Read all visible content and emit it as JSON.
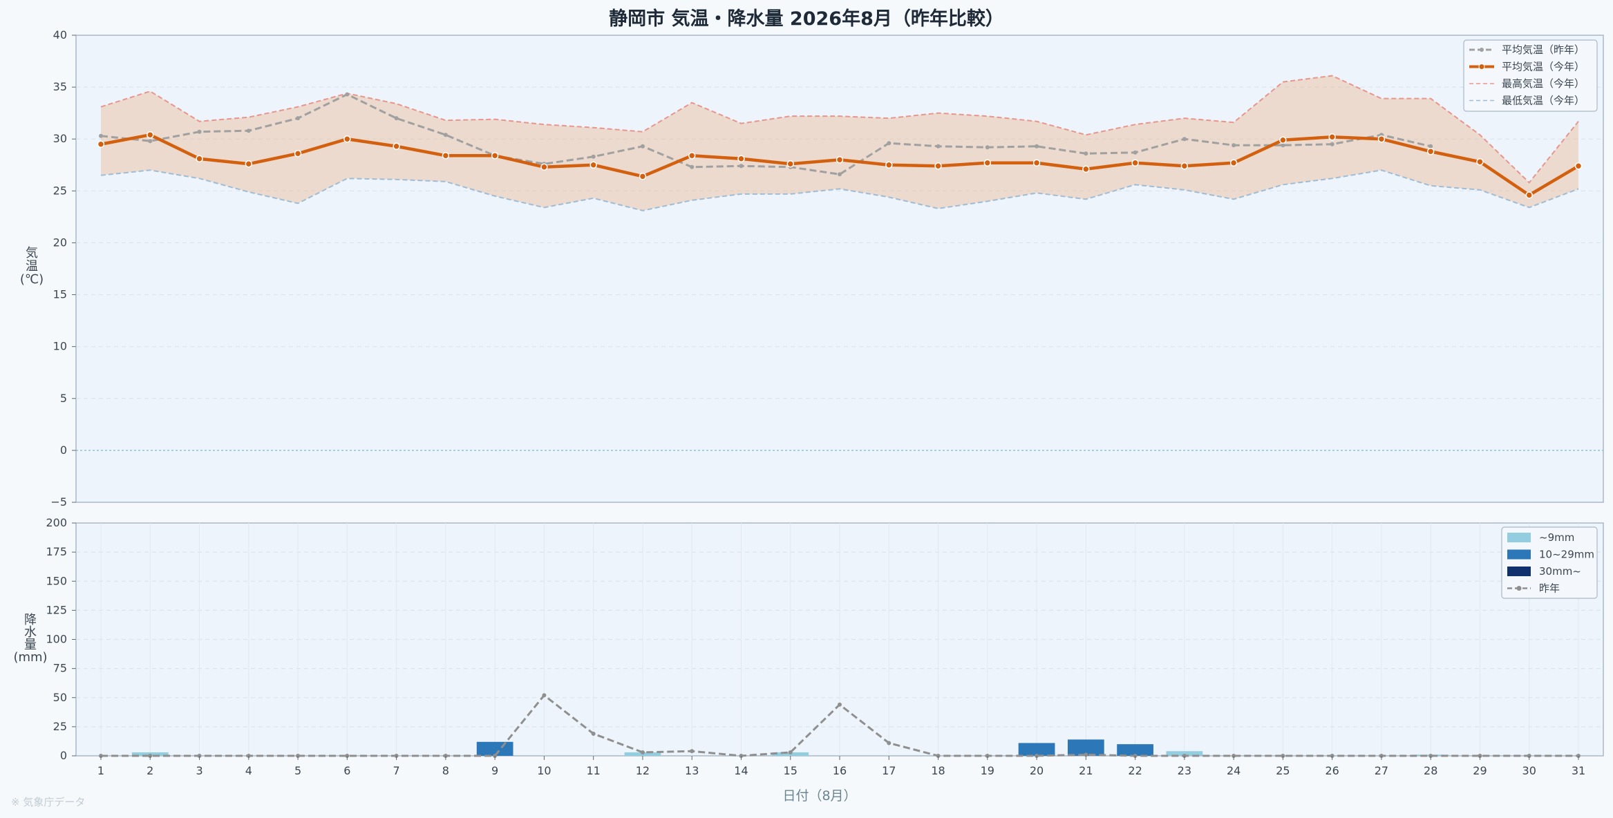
{
  "title": "静岡市 気温・降水量 2026年8月（昨年比較）",
  "source_note": "※ 気象庁データ",
  "chart_data": [
    {
      "type": "line",
      "ylabel": [
        "気",
        "温",
        "(℃)"
      ],
      "ylim": [
        -5,
        40
      ],
      "yticks": [
        "−5",
        "0",
        "5",
        "10",
        "15",
        "20",
        "25",
        "30",
        "35",
        "40"
      ],
      "ytick_values": [
        -5,
        0,
        5,
        10,
        15,
        20,
        25,
        30,
        35,
        40
      ],
      "grid": true,
      "legend_position": "top-right",
      "x": [
        1,
        2,
        3,
        4,
        5,
        6,
        7,
        8,
        9,
        10,
        11,
        12,
        13,
        14,
        15,
        16,
        17,
        18,
        19,
        20,
        21,
        22,
        23,
        24,
        25,
        26,
        27,
        28,
        29,
        30,
        31
      ],
      "series": [
        {
          "name": "平均気温（昨年）",
          "color": "#a0a0a0",
          "style": "dash-dot-marker",
          "values": [
            30.3,
            29.8,
            30.7,
            30.8,
            32.0,
            34.3,
            32.0,
            30.4,
            28.4,
            27.6,
            28.3,
            29.3,
            27.3,
            27.4,
            27.3,
            26.6,
            29.6,
            29.3,
            29.2,
            29.3,
            28.6,
            28.7,
            30.0,
            29.4,
            29.4,
            29.5,
            30.4,
            29.3,
            null,
            null,
            null
          ]
        },
        {
          "name": "平均気温（今年）",
          "color": "#d2600e",
          "style": "solid-marker",
          "values": [
            29.5,
            30.4,
            28.1,
            27.6,
            28.6,
            30.0,
            29.3,
            28.4,
            28.4,
            27.3,
            27.5,
            26.4,
            28.4,
            28.1,
            27.6,
            28.0,
            27.5,
            27.4,
            27.7,
            27.7,
            27.1,
            27.7,
            27.4,
            27.7,
            29.9,
            30.2,
            30.0,
            28.8,
            27.8,
            24.6,
            27.4
          ]
        },
        {
          "name": "最高気温（今年）",
          "color": "#e8958d",
          "style": "dashed",
          "values": [
            33.1,
            34.6,
            31.7,
            32.1,
            33.1,
            34.4,
            33.4,
            31.8,
            31.9,
            31.4,
            31.1,
            30.7,
            33.5,
            31.5,
            32.2,
            32.2,
            32.0,
            32.5,
            32.2,
            31.7,
            30.4,
            31.4,
            32.0,
            31.6,
            35.5,
            36.1,
            33.9,
            33.9,
            30.4,
            25.8,
            31.7
          ]
        },
        {
          "name": "最低気温（今年）",
          "color": "#9fbcd6",
          "style": "dashed",
          "values": [
            26.5,
            27.0,
            26.2,
            24.9,
            23.8,
            26.2,
            26.1,
            25.9,
            24.5,
            23.4,
            24.3,
            23.1,
            24.1,
            24.7,
            24.7,
            25.2,
            24.4,
            23.3,
            24.0,
            24.8,
            24.2,
            25.6,
            25.1,
            24.2,
            25.6,
            26.2,
            27.0,
            25.5,
            25.1,
            23.4,
            25.2
          ]
        }
      ]
    },
    {
      "type": "bar",
      "ylabel": [
        "降",
        "水",
        "量",
        "(mm)"
      ],
      "xlabel": "日付（8月）",
      "ylim": [
        0,
        200
      ],
      "yticks": [
        "0",
        "25",
        "50",
        "75",
        "100",
        "125",
        "150",
        "175",
        "200"
      ],
      "ytick_values": [
        0,
        25,
        50,
        75,
        100,
        125,
        150,
        175,
        200
      ],
      "categories": [
        "1",
        "2",
        "3",
        "4",
        "5",
        "6",
        "7",
        "8",
        "9",
        "10",
        "11",
        "12",
        "13",
        "14",
        "15",
        "16",
        "17",
        "18",
        "19",
        "20",
        "21",
        "22",
        "23",
        "24",
        "25",
        "26",
        "27",
        "28",
        "29",
        "30",
        "31"
      ],
      "grid": true,
      "legend_position": "top-right",
      "bin_legend": [
        {
          "name": "~9mm",
          "color": "#93cde0"
        },
        {
          "name": "10~29mm",
          "color": "#2b77b8"
        },
        {
          "name": "30mm~",
          "color": "#10306e"
        }
      ],
      "values": [
        0,
        3,
        0,
        0,
        0,
        0,
        0,
        0,
        12,
        0,
        0,
        3,
        0,
        0,
        3,
        0,
        0,
        0,
        0,
        11,
        14,
        10,
        4,
        0,
        0,
        0,
        0,
        1,
        0,
        0,
        0
      ],
      "series": [
        {
          "name": "昨年",
          "color": "#8f8f8f",
          "style": "dashed-marker",
          "values": [
            0,
            0,
            0,
            0,
            0,
            0,
            0,
            0,
            0,
            52,
            19,
            3,
            4,
            0,
            3,
            44,
            11,
            0,
            0,
            0,
            1,
            0,
            0,
            0,
            0,
            0,
            0,
            0,
            0,
            0,
            0
          ]
        }
      ]
    }
  ]
}
